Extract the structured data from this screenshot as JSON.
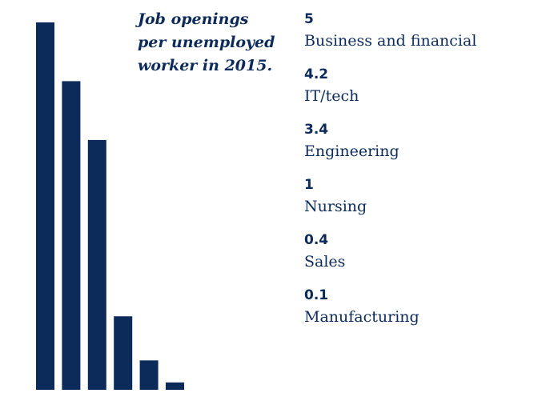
{
  "chart_data": {
    "type": "bar",
    "title": "Job openings per unemployed worker in 2015.",
    "title_lines": [
      "Job openings",
      "per unemployed",
      "worker in 2015."
    ],
    "categories": [
      "Business and financial",
      "IT/tech",
      "Engineering",
      "Nursing",
      "Sales",
      "Manufacturing"
    ],
    "values": [
      5,
      4.2,
      3.4,
      1,
      0.4,
      0.1
    ],
    "value_labels": [
      "5",
      "4.2",
      "3.4",
      "1",
      "0.4",
      "0.1"
    ],
    "ylim": [
      0,
      5
    ],
    "grid": false,
    "legend_position": "right",
    "bar_color": "#0c2b5a"
  }
}
